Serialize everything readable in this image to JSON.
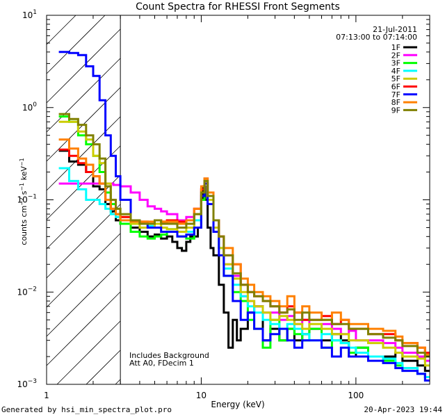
{
  "chart_data": {
    "type": "line",
    "title": "Count Spectra for RHESSI Front Segments",
    "xlabel": "Energy (keV)",
    "ylabel_parts": {
      "base": "counts cm",
      "exp1": "−2",
      "mid": " s",
      "exp2": "−1",
      "tail": " keV",
      "exp3": "−1"
    },
    "x_scale": "log",
    "y_scale": "log",
    "xlim": [
      1,
      300
    ],
    "ylim": [
      0.001,
      10
    ],
    "x_ticks": [
      {
        "value": 1,
        "label": "1"
      },
      {
        "value": 10,
        "label": "10"
      },
      {
        "value": 100,
        "label": "100"
      }
    ],
    "y_ticks": [
      {
        "value": 0.001,
        "base": "10",
        "exp": "−3"
      },
      {
        "value": 0.01,
        "base": "10",
        "exp": "−2"
      },
      {
        "value": 0.1,
        "base": "10",
        "exp": "−1"
      },
      {
        "value": 1,
        "base": "10",
        "exp": "0"
      },
      {
        "value": 10,
        "base": "10",
        "exp": "1"
      }
    ],
    "hatched_region": {
      "from_kev": 1,
      "to_kev": 3
    },
    "date": "21-Jul-2011",
    "time_range": "07:13:00 to 07:14:00",
    "annotation_lines": [
      "Includes Background",
      "Att A0, FDecim 1"
    ],
    "legend_position": "top-right",
    "series": [
      {
        "name": "1F",
        "color": "#000000",
        "x": [
          1.2,
          1.4,
          1.6,
          1.8,
          2.0,
          2.2,
          2.4,
          2.6,
          2.8,
          3.0,
          3.5,
          4.0,
          4.5,
          5.0,
          5.5,
          6.0,
          6.5,
          7.0,
          7.5,
          8.0,
          8.5,
          9.0,
          9.5,
          10.0,
          10.3,
          10.6,
          11.0,
          11.5,
          12.0,
          13,
          14,
          15,
          16,
          17,
          18,
          20,
          22,
          25,
          28,
          32,
          36,
          40,
          45,
          50,
          60,
          70,
          80,
          90,
          100,
          120,
          150,
          180,
          200,
          250,
          280
        ],
        "y": [
          0.34,
          0.26,
          0.24,
          0.2,
          0.14,
          0.13,
          0.09,
          0.075,
          0.06,
          0.055,
          0.05,
          0.045,
          0.04,
          0.042,
          0.038,
          0.04,
          0.035,
          0.03,
          0.028,
          0.035,
          0.04,
          0.04,
          0.05,
          0.1,
          0.14,
          0.1,
          0.05,
          0.03,
          0.025,
          0.012,
          0.006,
          0.0025,
          0.005,
          0.003,
          0.004,
          0.006,
          0.007,
          0.003,
          0.004,
          0.003,
          0.004,
          0.003,
          0.0035,
          0.004,
          0.003,
          0.0035,
          0.003,
          0.002,
          0.0025,
          0.002,
          0.002,
          0.0022,
          0.0018,
          0.0016,
          0.0014
        ]
      },
      {
        "name": "2F",
        "color": "#ff00ff",
        "x": [
          1.2,
          1.5,
          1.8,
          2.1,
          2.4,
          2.7,
          3.0,
          3.5,
          4.0,
          4.5,
          5.0,
          5.5,
          6.0,
          7.0,
          8.0,
          9.0,
          10.0,
          10.5,
          11.0,
          12,
          13,
          14,
          16,
          18,
          20,
          22,
          25,
          28,
          32,
          36,
          40,
          45,
          50,
          60,
          70,
          80,
          90,
          100,
          120,
          150,
          180,
          200,
          250,
          280
        ],
        "y": [
          0.15,
          0.15,
          0.15,
          0.15,
          0.15,
          0.145,
          0.14,
          0.12,
          0.1,
          0.085,
          0.08,
          0.075,
          0.07,
          0.06,
          0.065,
          0.08,
          0.13,
          0.17,
          0.12,
          0.06,
          0.04,
          0.02,
          0.015,
          0.009,
          0.008,
          0.007,
          0.006,
          0.006,
          0.005,
          0.0055,
          0.0045,
          0.005,
          0.004,
          0.0045,
          0.004,
          0.0035,
          0.0038,
          0.003,
          0.003,
          0.0028,
          0.0025,
          0.0022,
          0.002,
          0.0018
        ]
      },
      {
        "name": "3F",
        "color": "#00ff00",
        "x": [
          1.2,
          1.4,
          1.6,
          1.8,
          2.0,
          2.2,
          2.4,
          2.6,
          2.8,
          3.0,
          3.5,
          4.0,
          4.5,
          5.0,
          5.5,
          6.0,
          7.0,
          8.0,
          9.0,
          10.0,
          10.5,
          11.0,
          12,
          13,
          14,
          16,
          18,
          20,
          22,
          25,
          28,
          32,
          36,
          40,
          45,
          50,
          60,
          70,
          80,
          90,
          100,
          120,
          150,
          180,
          200,
          250,
          280
        ],
        "y": [
          0.8,
          0.7,
          0.5,
          0.4,
          0.3,
          0.2,
          0.12,
          0.09,
          0.07,
          0.055,
          0.045,
          0.04,
          0.038,
          0.04,
          0.042,
          0.045,
          0.04,
          0.038,
          0.05,
          0.1,
          0.15,
          0.1,
          0.05,
          0.03,
          0.015,
          0.01,
          0.008,
          0.005,
          0.004,
          0.0025,
          0.005,
          0.003,
          0.004,
          0.0035,
          0.003,
          0.004,
          0.0025,
          0.003,
          0.0028,
          0.0022,
          0.0025,
          0.002,
          0.0018,
          0.0016,
          0.0015,
          0.0013,
          0.0012
        ]
      },
      {
        "name": "4F",
        "color": "#00ffff",
        "x": [
          1.2,
          1.4,
          1.6,
          1.8,
          2.0,
          2.2,
          2.4,
          2.6,
          2.8,
          3.0,
          3.5,
          4.0,
          4.5,
          5.0,
          5.5,
          6.0,
          7.0,
          8.0,
          9.0,
          10.0,
          10.5,
          11.0,
          12,
          13,
          14,
          16,
          18,
          20,
          22,
          25,
          28,
          32,
          36,
          40,
          45,
          50,
          60,
          70,
          80,
          90,
          100,
          120,
          150,
          180,
          200,
          250,
          280
        ],
        "y": [
          0.22,
          0.16,
          0.13,
          0.1,
          0.1,
          0.09,
          0.08,
          0.07,
          0.065,
          0.06,
          0.055,
          0.055,
          0.052,
          0.05,
          0.05,
          0.048,
          0.045,
          0.045,
          0.06,
          0.12,
          0.16,
          0.1,
          0.05,
          0.03,
          0.018,
          0.012,
          0.009,
          0.007,
          0.006,
          0.005,
          0.0045,
          0.004,
          0.0045,
          0.004,
          0.0035,
          0.003,
          0.0035,
          0.003,
          0.0028,
          0.0025,
          0.0022,
          0.002,
          0.0019,
          0.0017,
          0.0015,
          0.0013,
          0.0012
        ]
      },
      {
        "name": "5F",
        "color": "#cccc00",
        "x": [
          1.2,
          1.4,
          1.6,
          1.8,
          2.0,
          2.2,
          2.4,
          2.6,
          2.8,
          3.0,
          3.5,
          4.0,
          4.5,
          5.0,
          5.5,
          6.0,
          7.0,
          8.0,
          9.0,
          10.0,
          10.5,
          11.0,
          12,
          13,
          14,
          16,
          18,
          20,
          22,
          25,
          28,
          32,
          36,
          40,
          45,
          50,
          60,
          70,
          80,
          90,
          100,
          120,
          150,
          180,
          200,
          250,
          280
        ],
        "y": [
          0.7,
          0.7,
          0.55,
          0.45,
          0.3,
          0.25,
          0.15,
          0.1,
          0.08,
          0.065,
          0.055,
          0.05,
          0.05,
          0.055,
          0.05,
          0.048,
          0.045,
          0.05,
          0.07,
          0.13,
          0.17,
          0.1,
          0.05,
          0.03,
          0.02,
          0.014,
          0.01,
          0.008,
          0.007,
          0.006,
          0.005,
          0.0055,
          0.005,
          0.0045,
          0.004,
          0.0045,
          0.004,
          0.0035,
          0.0035,
          0.003,
          0.003,
          0.0028,
          0.0025,
          0.0022,
          0.002,
          0.0019,
          0.0016
        ]
      },
      {
        "name": "6F",
        "color": "#ff0000",
        "x": [
          1.2,
          1.4,
          1.6,
          1.8,
          2.0,
          2.2,
          2.4,
          2.6,
          2.8,
          3.0,
          3.5,
          4.0,
          4.5,
          5.0,
          5.5,
          6.0,
          7.0,
          8.0,
          9.0,
          10.0,
          10.5,
          11.0,
          12,
          13,
          14,
          16,
          18,
          20,
          22,
          25,
          28,
          32,
          36,
          40,
          45,
          50,
          60,
          70,
          80,
          90,
          100,
          120,
          150,
          180,
          200,
          250,
          280
        ],
        "y": [
          0.35,
          0.3,
          0.25,
          0.2,
          0.18,
          0.15,
          0.1,
          0.08,
          0.07,
          0.065,
          0.06,
          0.058,
          0.055,
          0.06,
          0.058,
          0.06,
          0.058,
          0.06,
          0.08,
          0.13,
          0.16,
          0.11,
          0.06,
          0.04,
          0.025,
          0.02,
          0.012,
          0.01,
          0.009,
          0.008,
          0.007,
          0.006,
          0.007,
          0.006,
          0.005,
          0.005,
          0.0055,
          0.0045,
          0.005,
          0.004,
          0.004,
          0.0035,
          0.0035,
          0.003,
          0.0028,
          0.0025,
          0.0022
        ]
      },
      {
        "name": "7F",
        "color": "#0000ff",
        "x": [
          1.2,
          1.4,
          1.6,
          1.8,
          2.0,
          2.2,
          2.4,
          2.6,
          2.8,
          3.0,
          3.5,
          4.0,
          4.5,
          5.0,
          5.5,
          6.0,
          7.0,
          8.0,
          9.0,
          10.0,
          10.5,
          11.0,
          12,
          13,
          14,
          16,
          18,
          20,
          22,
          25,
          28,
          32,
          36,
          40,
          45,
          50,
          60,
          70,
          80,
          90,
          100,
          120,
          150,
          180,
          200,
          250,
          280
        ],
        "y": [
          4.0,
          3.9,
          3.7,
          2.8,
          2.2,
          1.2,
          0.5,
          0.3,
          0.18,
          0.1,
          0.06,
          0.055,
          0.05,
          0.05,
          0.045,
          0.045,
          0.04,
          0.042,
          0.05,
          0.11,
          0.15,
          0.09,
          0.045,
          0.025,
          0.015,
          0.008,
          0.005,
          0.006,
          0.004,
          0.003,
          0.0035,
          0.004,
          0.003,
          0.0025,
          0.003,
          0.003,
          0.0025,
          0.002,
          0.0025,
          0.002,
          0.002,
          0.0018,
          0.0017,
          0.0015,
          0.0014,
          0.0013,
          0.0011
        ]
      },
      {
        "name": "8F",
        "color": "#ff8000",
        "x": [
          1.2,
          1.4,
          1.6,
          1.8,
          2.0,
          2.2,
          2.4,
          2.6,
          2.8,
          3.0,
          3.5,
          4.0,
          4.5,
          5.0,
          5.5,
          6.0,
          7.0,
          8.0,
          9.0,
          10.0,
          10.5,
          11.0,
          12,
          13,
          14,
          16,
          18,
          20,
          22,
          25,
          28,
          32,
          36,
          40,
          45,
          50,
          60,
          70,
          80,
          90,
          100,
          120,
          150,
          180,
          200,
          250,
          280
        ],
        "y": [
          0.45,
          0.36,
          0.28,
          0.24,
          0.18,
          0.15,
          0.1,
          0.08,
          0.07,
          0.06,
          0.058,
          0.058,
          0.058,
          0.06,
          0.058,
          0.058,
          0.055,
          0.06,
          0.08,
          0.14,
          0.17,
          0.12,
          0.06,
          0.04,
          0.03,
          0.02,
          0.014,
          0.012,
          0.01,
          0.009,
          0.008,
          0.007,
          0.009,
          0.006,
          0.007,
          0.006,
          0.005,
          0.006,
          0.005,
          0.0045,
          0.0045,
          0.004,
          0.0038,
          0.0033,
          0.0028,
          0.0025,
          0.0021
        ]
      },
      {
        "name": "9F",
        "color": "#808000",
        "x": [
          1.2,
          1.4,
          1.6,
          1.8,
          2.0,
          2.2,
          2.4,
          2.6,
          2.8,
          3.0,
          3.5,
          4.0,
          4.5,
          5.0,
          5.5,
          6.0,
          7.0,
          8.0,
          9.0,
          10.0,
          10.5,
          11.0,
          12,
          13,
          14,
          16,
          18,
          20,
          22,
          25,
          28,
          32,
          36,
          40,
          45,
          50,
          60,
          70,
          80,
          90,
          100,
          120,
          150,
          180,
          200,
          250,
          280
        ],
        "y": [
          0.85,
          0.75,
          0.65,
          0.5,
          0.4,
          0.28,
          0.14,
          0.1,
          0.08,
          0.07,
          0.06,
          0.055,
          0.055,
          0.06,
          0.055,
          0.055,
          0.05,
          0.055,
          0.07,
          0.12,
          0.16,
          0.11,
          0.06,
          0.04,
          0.025,
          0.016,
          0.012,
          0.01,
          0.009,
          0.008,
          0.007,
          0.006,
          0.0065,
          0.005,
          0.006,
          0.005,
          0.005,
          0.0045,
          0.0045,
          0.004,
          0.004,
          0.0035,
          0.0032,
          0.003,
          0.0026,
          0.0022,
          0.002
        ]
      }
    ]
  },
  "footer": {
    "left": "Generated by hsi_min_spectra_plot.pro",
    "right": "20-Apr-2023 19:44"
  }
}
